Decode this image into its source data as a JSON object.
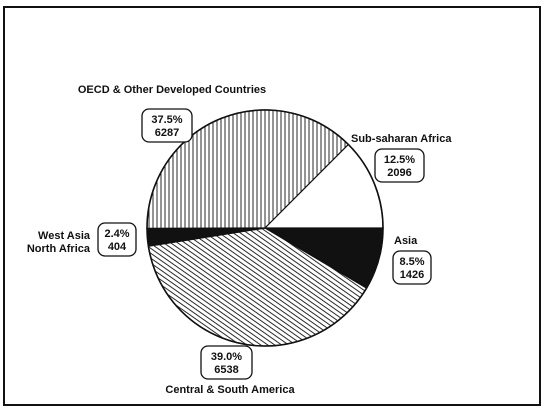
{
  "chart_data": {
    "type": "pie",
    "title": "",
    "slices": [
      {
        "name": "OECD & Other Developed Countries",
        "name_lines": [
          "OECD & Other Developed Countries"
        ],
        "percent": "37.5%",
        "value": 6287,
        "value_label": "6287",
        "fill": "vertical-hatch"
      },
      {
        "name": "Sub-saharan Africa",
        "name_lines": [
          "Sub-saharan Africa"
        ],
        "percent": "12.5%",
        "value": 2096,
        "value_label": "2096",
        "fill": "white"
      },
      {
        "name": "Asia",
        "name_lines": [
          "Asia"
        ],
        "percent": "8.5%",
        "value": 1426,
        "value_label": "1426",
        "fill": "black"
      },
      {
        "name": "Central & South America",
        "name_lines": [
          "Central & South America"
        ],
        "percent": "39.0%",
        "value": 6538,
        "value_label": "6538",
        "fill": "diagonal-hatch"
      },
      {
        "name": "West Asia North Africa",
        "name_lines": [
          "West Asia",
          "North Africa"
        ],
        "percent": "2.4%",
        "value": 404,
        "value_label": "404",
        "fill": "black"
      }
    ],
    "colors": {
      "ink": "#111111",
      "background": "#ffffff"
    }
  }
}
